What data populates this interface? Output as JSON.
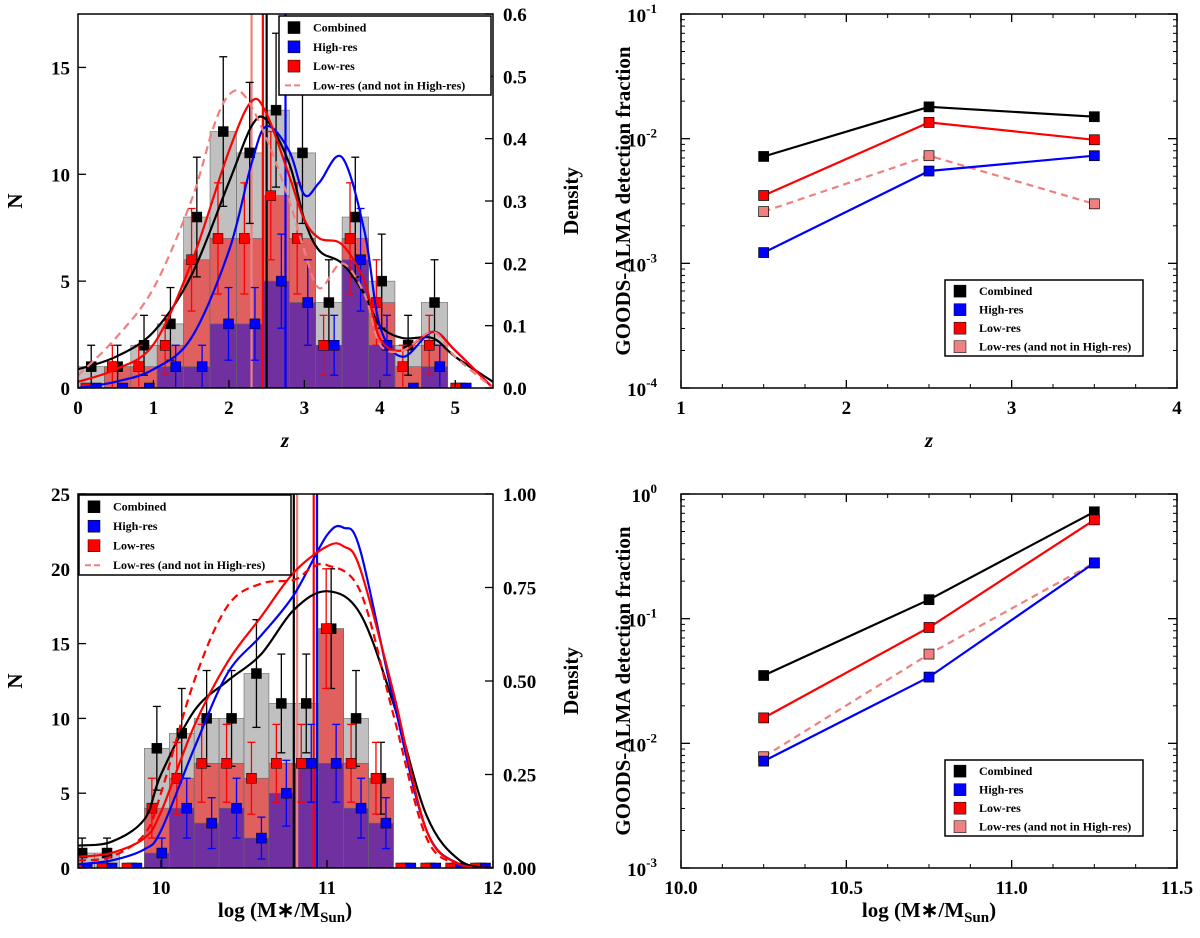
{
  "legend_labels": [
    "Combined",
    "High-res",
    "Low-res",
    "Low-res (and not in High-res)"
  ],
  "colors": {
    "combined": "#000000",
    "highres": "#0000ff",
    "lowres": "#ff0000",
    "lowres_not_hr": "#f08080",
    "bar_combined": "#c0c0c0",
    "bar_lowres": "#e06060",
    "bar_highres": "#7030a0"
  },
  "chart_data": [
    {
      "type": "bar",
      "panel": "redshift-histogram",
      "xlabel": "z",
      "ylabel": "N",
      "y2label": "Density",
      "xlim": [
        0,
        5.5
      ],
      "ylim": [
        0,
        17.5
      ],
      "y2lim": [
        0,
        0.6
      ],
      "xticks": [
        "0",
        "1",
        "2",
        "3",
        "4",
        "5"
      ],
      "yticks": [
        "0",
        "5",
        "10",
        "15"
      ],
      "y2ticks": [
        "0.0",
        "0.1",
        "0.2",
        "0.3",
        "0.4",
        "0.5",
        "0.6"
      ],
      "bin_edges": [
        0,
        0.35,
        0.7,
        1.05,
        1.4,
        1.75,
        2.1,
        2.45,
        2.8,
        3.15,
        3.5,
        3.85,
        4.2,
        4.55,
        4.9,
        5.25
      ],
      "series": [
        {
          "name": "Combined",
          "values": [
            1,
            1,
            2,
            3,
            8,
            12,
            11,
            13,
            11,
            4,
            8,
            5,
            2,
            4,
            0
          ]
        },
        {
          "name": "Low-res",
          "values": [
            0,
            1,
            1,
            2,
            6,
            7,
            7,
            9,
            7,
            2,
            7,
            4,
            1,
            2,
            0
          ]
        },
        {
          "name": "High-res",
          "values": [
            0,
            0,
            0,
            1,
            1,
            3,
            3,
            5,
            4,
            2,
            6,
            2,
            0,
            1,
            0
          ]
        }
      ],
      "errors": [
        {
          "name": "Combined",
          "values": [
            1.0,
            1.0,
            1.4,
            1.7,
            2.8,
            3.5,
            3.3,
            3.6,
            3.3,
            2.0,
            2.8,
            2.2,
            1.4,
            2.0,
            0
          ]
        },
        {
          "name": "Low-res",
          "values": [
            0,
            1.0,
            1.0,
            1.4,
            2.4,
            2.6,
            2.6,
            3.0,
            2.6,
            1.4,
            2.6,
            2.0,
            1.0,
            1.4,
            0
          ]
        },
        {
          "name": "High-res",
          "values": [
            0,
            0,
            0,
            1.0,
            1.0,
            1.7,
            1.7,
            2.2,
            2.0,
            1.4,
            2.4,
            1.4,
            0,
            1.0,
            0
          ]
        }
      ],
      "medians": {
        "Combined": 2.5,
        "High-res": 2.75,
        "Low-res": 2.45,
        "Low-res (and not in High-res)": 2.3
      },
      "density": [
        {
          "name": "Combined",
          "x": [
            0,
            0.5,
            1,
            1.5,
            2,
            2.3,
            2.5,
            2.8,
            3,
            3.2,
            3.5,
            3.8,
            4,
            4.3,
            4.7,
            5,
            5.5
          ],
          "y": [
            0.03,
            0.05,
            0.09,
            0.18,
            0.33,
            0.42,
            0.43,
            0.36,
            0.27,
            0.22,
            0.2,
            0.15,
            0.1,
            0.08,
            0.08,
            0.05,
            0.01
          ]
        },
        {
          "name": "High-res",
          "x": [
            0,
            0.5,
            1,
            1.5,
            2,
            2.3,
            2.5,
            2.8,
            3,
            3.2,
            3.5,
            3.8,
            4,
            4.3,
            4.7,
            5,
            5.5
          ],
          "y": [
            0,
            0.01,
            0.03,
            0.08,
            0.22,
            0.36,
            0.42,
            0.38,
            0.31,
            0.33,
            0.37,
            0.25,
            0.1,
            0.05,
            0.09,
            0.06,
            0
          ]
        },
        {
          "name": "Low-res",
          "x": [
            0,
            0.5,
            1,
            1.5,
            2,
            2.3,
            2.5,
            2.8,
            3,
            3.2,
            3.5,
            3.8,
            4,
            4.3,
            4.7,
            5,
            5.5
          ],
          "y": [
            0.01,
            0.03,
            0.07,
            0.2,
            0.38,
            0.46,
            0.44,
            0.34,
            0.27,
            0.24,
            0.23,
            0.17,
            0.08,
            0.06,
            0.09,
            0.06,
            0
          ]
        },
        {
          "name": "Low-res (and not in High-res)",
          "x": [
            0,
            0.5,
            1,
            1.5,
            1.8,
            2,
            2.2,
            2.5,
            2.8,
            3,
            3.2,
            3.5,
            3.8,
            4,
            4.3,
            4.7,
            5,
            5.5
          ],
          "y": [
            0.02,
            0.08,
            0.16,
            0.3,
            0.42,
            0.47,
            0.47,
            0.4,
            0.3,
            0.22,
            0.16,
            0.2,
            0.15,
            0.07,
            0.06,
            0.09,
            0.05,
            0
          ]
        }
      ]
    },
    {
      "type": "line",
      "panel": "redshift-detection-fraction",
      "xlabel": "z",
      "ylabel": "GOODS-ALMA detection fraction",
      "xlim": [
        1,
        4
      ],
      "ylim": [
        0.0001,
        0.1
      ],
      "yscale": "log",
      "xticks": [
        "1",
        "2",
        "3",
        "4"
      ],
      "yticks": [
        "10",
        "10",
        "10",
        "10"
      ],
      "ytick_exponents": [
        "-4",
        "-3",
        "-2",
        "-1"
      ],
      "x": [
        1.5,
        2.5,
        3.5
      ],
      "series": [
        {
          "name": "Combined",
          "values": [
            0.0072,
            0.018,
            0.015
          ]
        },
        {
          "name": "Low-res",
          "values": [
            0.0035,
            0.0135,
            0.0098
          ]
        },
        {
          "name": "Low-res (and not in High-res)",
          "values": [
            0.0026,
            0.0073,
            0.003
          ]
        },
        {
          "name": "High-res",
          "values": [
            0.00122,
            0.0055,
            0.0073
          ]
        }
      ]
    },
    {
      "type": "bar",
      "panel": "mass-histogram",
      "xlabel": "log (M∗/M",
      "xlabel_sub": "Sun",
      "ylabel": "N",
      "y2label": "Density",
      "xlim": [
        9.5,
        12
      ],
      "ylim": [
        0,
        25
      ],
      "y2lim": [
        0,
        1
      ],
      "xticks": [
        "10",
        "11",
        "12"
      ],
      "yticks": [
        "0",
        "5",
        "10",
        "15",
        "20",
        "25"
      ],
      "y2ticks": [
        "0.00",
        "0.25",
        "0.50",
        "0.75",
        "1.00"
      ],
      "bin_edges": [
        9.45,
        9.6,
        9.75,
        9.9,
        10.05,
        10.2,
        10.35,
        10.5,
        10.65,
        10.8,
        10.95,
        11.1,
        11.25,
        11.4,
        11.55,
        11.7,
        11.85,
        12.0
      ],
      "series": [
        {
          "name": "Combined",
          "values": [
            1,
            1,
            0,
            8,
            9,
            10,
            10,
            13,
            11,
            11,
            16,
            10,
            6,
            0,
            0,
            0,
            0
          ]
        },
        {
          "name": "Low-res",
          "values": [
            0,
            0,
            0,
            4,
            6,
            7,
            7,
            6,
            7,
            7,
            16,
            7,
            6,
            0,
            0,
            0,
            0
          ]
        },
        {
          "name": "High-res",
          "values": [
            0,
            0,
            0,
            1,
            4,
            3,
            4,
            2,
            5,
            7,
            7,
            4,
            3,
            0,
            0,
            0,
            0
          ]
        }
      ],
      "errors": [
        {
          "name": "Combined",
          "values": [
            1,
            1,
            0,
            2.8,
            3.0,
            3.2,
            3.2,
            3.6,
            3.3,
            3.3,
            4.0,
            3.2,
            2.4,
            0,
            0,
            0,
            0
          ]
        },
        {
          "name": "Low-res",
          "values": [
            0,
            0,
            0,
            2.0,
            2.4,
            2.6,
            2.6,
            2.4,
            2.6,
            2.6,
            4.0,
            2.6,
            2.4,
            0,
            0,
            0,
            0
          ]
        },
        {
          "name": "High-res",
          "values": [
            0,
            0,
            0,
            1.0,
            2.0,
            1.7,
            2.0,
            1.4,
            2.2,
            2.6,
            2.6,
            2.0,
            1.7,
            0,
            0,
            0,
            0
          ]
        }
      ],
      "medians": {
        "Combined": 10.8,
        "High-res": 10.94,
        "Low-res": 10.92,
        "Low-res (and not in High-res)": 10.82
      },
      "density": [
        {
          "name": "Combined",
          "x": [
            9.5,
            9.7,
            9.9,
            10.0,
            10.2,
            10.4,
            10.6,
            10.8,
            11.0,
            11.2,
            11.4,
            11.6,
            11.8,
            12.0
          ],
          "y": [
            0.06,
            0.07,
            0.13,
            0.25,
            0.42,
            0.5,
            0.57,
            0.69,
            0.74,
            0.68,
            0.44,
            0.14,
            0.02,
            0
          ]
        },
        {
          "name": "High-res",
          "x": [
            9.5,
            9.7,
            9.9,
            10.0,
            10.2,
            10.4,
            10.6,
            10.8,
            11.0,
            11.1,
            11.2,
            11.4,
            11.6,
            11.8,
            12.0
          ],
          "y": [
            0.01,
            0.02,
            0.05,
            0.1,
            0.32,
            0.52,
            0.62,
            0.73,
            0.89,
            0.91,
            0.85,
            0.45,
            0.1,
            0.01,
            0
          ]
        },
        {
          "name": "Low-res",
          "x": [
            9.5,
            9.7,
            9.9,
            10.0,
            10.2,
            10.4,
            10.6,
            10.8,
            11.0,
            11.1,
            11.2,
            11.4,
            11.6,
            11.8,
            12.0
          ],
          "y": [
            0.03,
            0.04,
            0.08,
            0.15,
            0.38,
            0.55,
            0.67,
            0.79,
            0.86,
            0.86,
            0.8,
            0.47,
            0.1,
            0.01,
            0
          ]
        },
        {
          "name": "Low-res (and not in High-res)",
          "x": [
            9.5,
            9.7,
            9.9,
            10.0,
            10.2,
            10.4,
            10.6,
            10.8,
            10.9,
            11.0,
            11.2,
            11.4,
            11.6,
            11.8,
            12.0
          ],
          "y": [
            0.02,
            0.03,
            0.09,
            0.2,
            0.5,
            0.7,
            0.76,
            0.77,
            0.8,
            0.81,
            0.74,
            0.41,
            0.08,
            0.01,
            0
          ]
        }
      ]
    },
    {
      "type": "line",
      "panel": "mass-detection-fraction",
      "xlabel": "log (M∗/M",
      "xlabel_sub": "Sun",
      "ylabel": "GOODS-ALMA detection fraction",
      "xlim": [
        10.0,
        11.5
      ],
      "ylim": [
        0.001,
        1
      ],
      "yscale": "log",
      "xticks": [
        "10.0",
        "10.5",
        "11.0",
        "11.5"
      ],
      "yticks": [
        "10",
        "10",
        "10",
        "10"
      ],
      "ytick_exponents": [
        "-3",
        "-2",
        "-1",
        "0"
      ],
      "x": [
        10.25,
        10.75,
        11.25
      ],
      "series": [
        {
          "name": "Combined",
          "values": [
            0.035,
            0.142,
            0.72
          ]
        },
        {
          "name": "Low-res",
          "values": [
            0.016,
            0.085,
            0.62
          ]
        },
        {
          "name": "Low-res (and not in High-res)",
          "values": [
            0.0078,
            0.052,
            0.28
          ]
        },
        {
          "name": "High-res",
          "values": [
            0.0072,
            0.034,
            0.28
          ]
        }
      ]
    }
  ]
}
